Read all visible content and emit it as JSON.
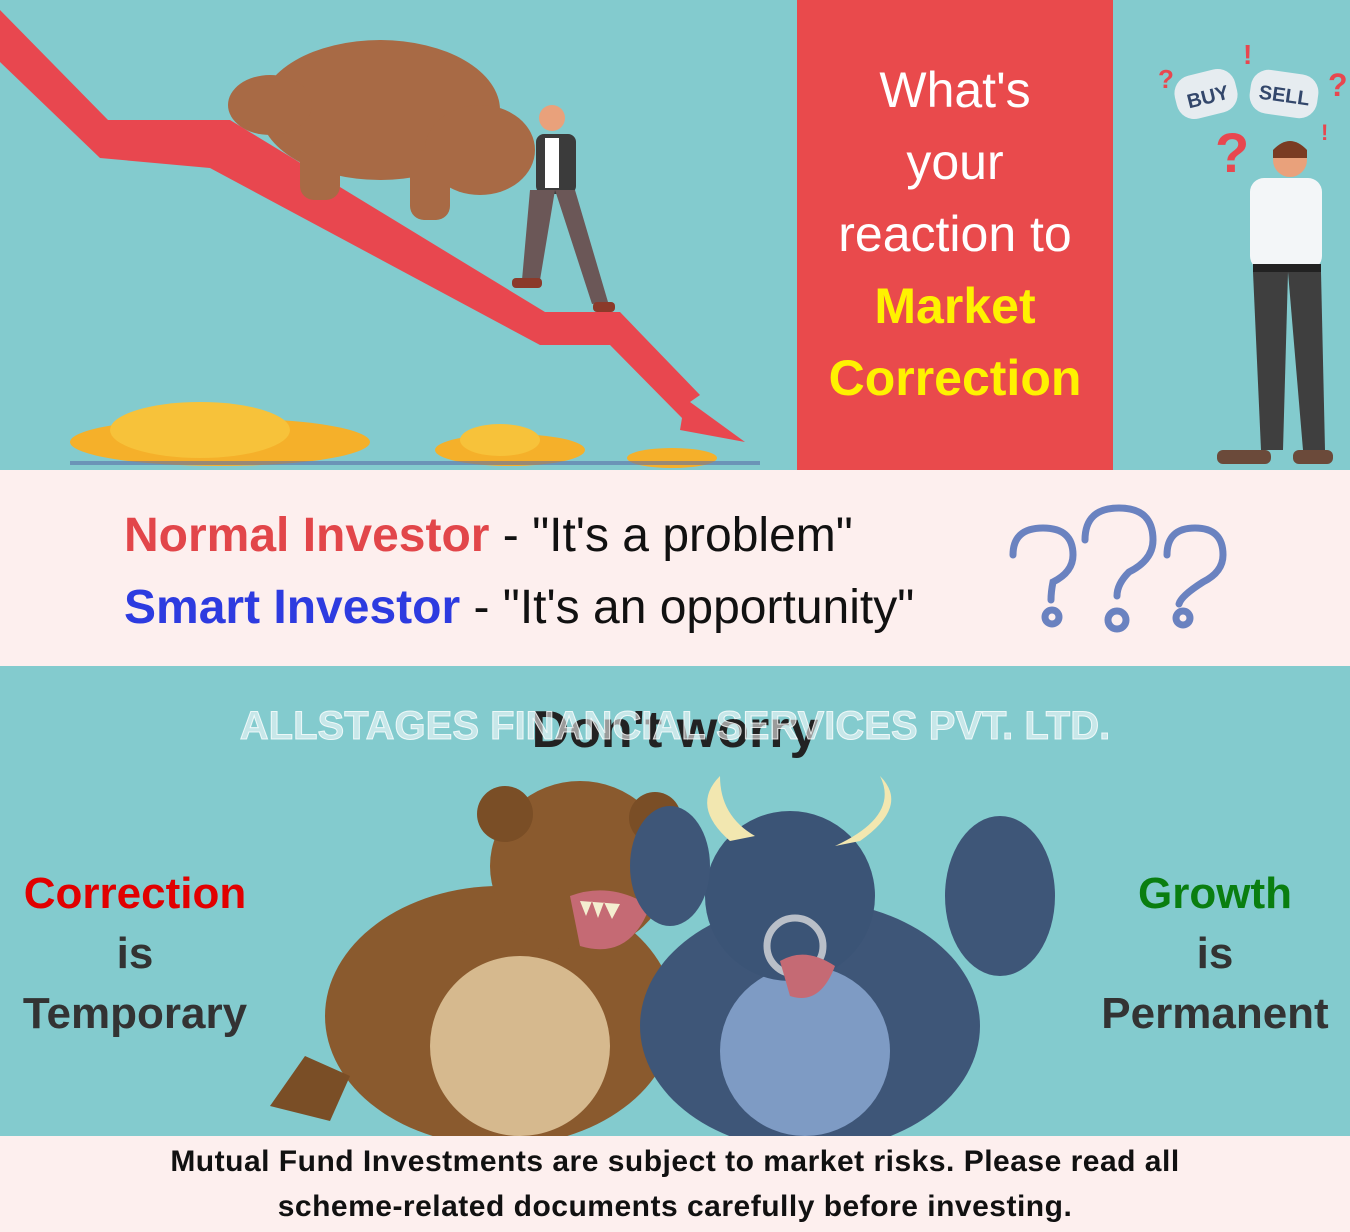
{
  "header": {
    "question_lines": [
      "What's",
      "your",
      "reaction to"
    ],
    "highlight_lines": [
      "Market",
      "Correction"
    ],
    "buy_label": "BUY",
    "sell_label": "SELL"
  },
  "investors": {
    "normal_label": "Normal Investor",
    "normal_quote": " - \"It's a problem\"",
    "smart_label": "Smart Investor",
    "smart_quote": " - \"It's an opportunity\""
  },
  "middle": {
    "heading": "Don't worry",
    "watermark": "ALLSTAGES FINANCIAL SERVICES PVT. LTD."
  },
  "left_message": {
    "line1": "Correction",
    "line2": "is",
    "line3": "Temporary"
  },
  "right_message": {
    "line1": "Growth",
    "line2": "is",
    "line3": "Permanent"
  },
  "disclaimer": {
    "line1": "Mutual Fund Investments are subject to market risks. Please read all",
    "line2": "scheme-related documents carefully before investing."
  },
  "colors": {
    "teal_bg": "#83CBCE",
    "red_panel": "#E94A4C",
    "highlight_yellow": "#FFF200",
    "light_band": "#FDEFEE",
    "normal_red": "#E2464A",
    "smart_blue": "#2D3BE0",
    "correction_red": "#E10000",
    "growth_green": "#0A7E10"
  }
}
